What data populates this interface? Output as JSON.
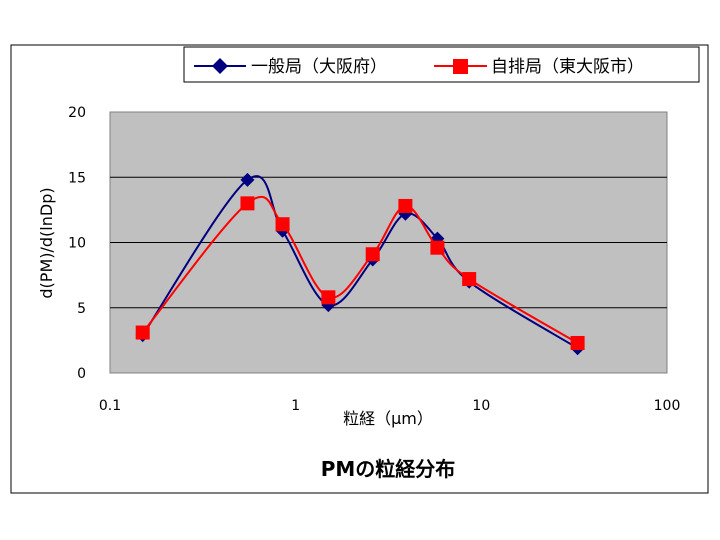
{
  "chart_data": {
    "type": "line",
    "title": "PMの粒経分布",
    "xlabel": "粒経（μm）",
    "ylabel": "d(PM)/d(lnDp)",
    "x_scale": "log",
    "xlim": [
      0.1,
      100
    ],
    "ylim": [
      0,
      20
    ],
    "x_ticks": [
      "0.1",
      "1",
      "10",
      "100"
    ],
    "y_ticks": [
      "0",
      "5",
      "10",
      "15",
      "20"
    ],
    "grid": "horizontal",
    "legend_position": "top",
    "plot_background": "#c0c0c0",
    "series": [
      {
        "name": "一般局（大阪府）",
        "color": "#000080",
        "marker": "diamond",
        "x": [
          0.15,
          0.55,
          0.85,
          1.5,
          2.6,
          3.9,
          5.8,
          8.6,
          33
        ],
        "y": [
          2.9,
          14.8,
          10.9,
          5.2,
          8.7,
          12.2,
          10.3,
          7.0,
          1.9
        ]
      },
      {
        "name": "自排局（東大阪市）",
        "color": "#ff0000",
        "marker": "square",
        "x": [
          0.15,
          0.55,
          0.85,
          1.5,
          2.6,
          3.9,
          5.8,
          8.6,
          33
        ],
        "y": [
          3.1,
          13.0,
          11.4,
          5.8,
          9.1,
          12.8,
          9.6,
          7.2,
          2.3
        ]
      }
    ]
  }
}
